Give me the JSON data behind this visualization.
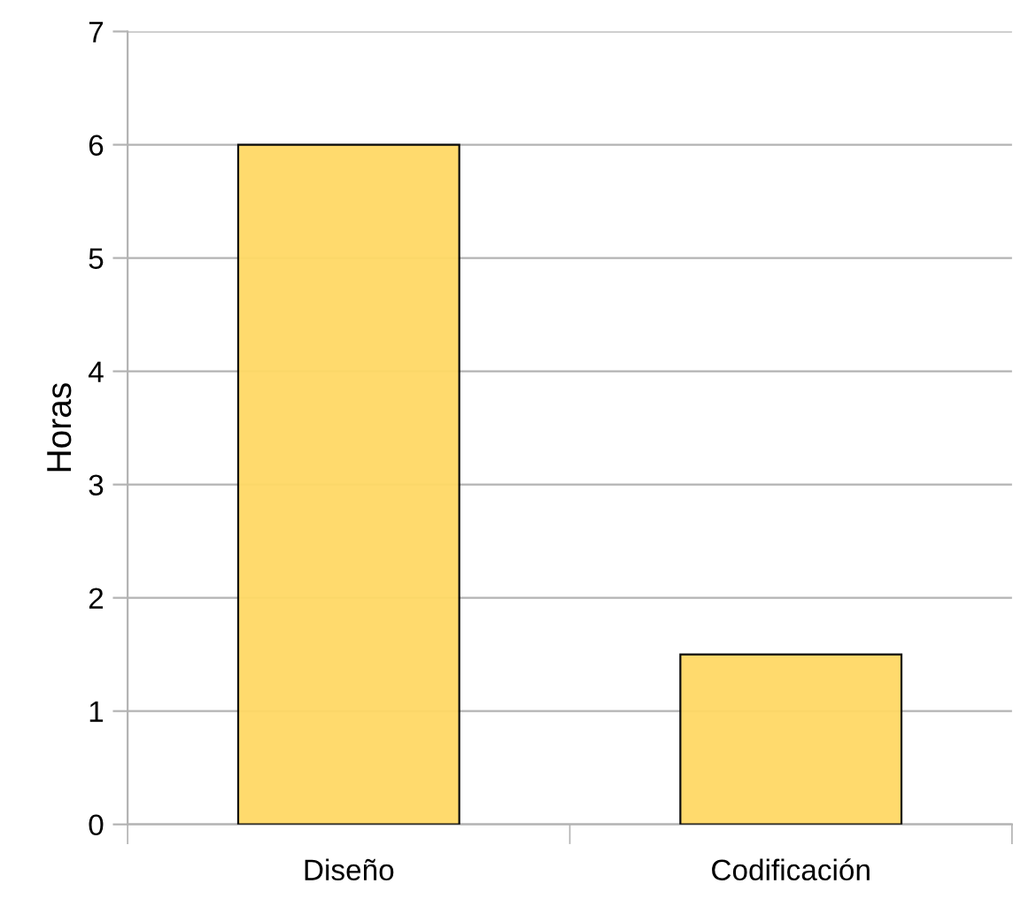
{
  "chart_data": {
    "type": "bar",
    "ylabel": "Horas",
    "categories": [
      "Diseño",
      "Codificación"
    ],
    "values": [
      6,
      1.5
    ],
    "color": "#ffd966",
    "ylim": [
      0,
      7
    ],
    "yticks": [
      0,
      1,
      2,
      3,
      4,
      5,
      6,
      7
    ],
    "grid": "y"
  }
}
